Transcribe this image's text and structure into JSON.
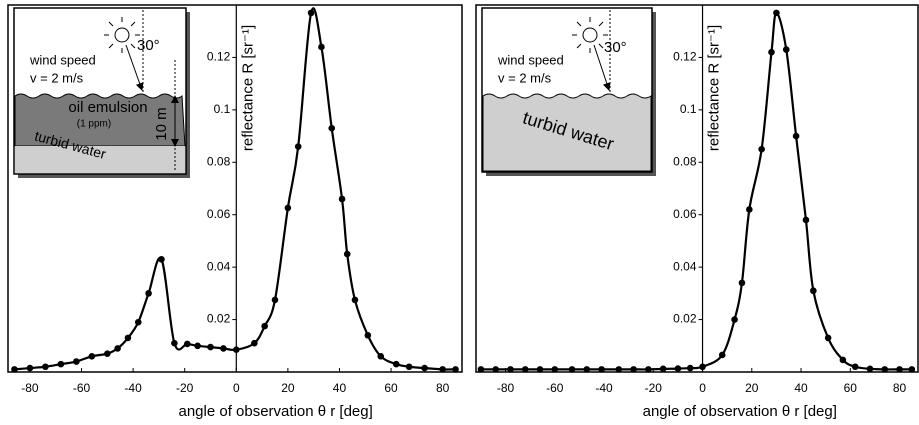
{
  "chart_data": [
    {
      "type": "line",
      "xlim": [
        -88.5,
        87.5
      ],
      "ylim": [
        0,
        0.14
      ],
      "xticks": [
        -80,
        -60,
        -40,
        -20,
        0,
        20,
        40,
        60,
        80
      ],
      "yticks": [
        0.02,
        0.04,
        0.06,
        0.08,
        0.1,
        0.12
      ],
      "xlabel": "angle of observation θ r  [deg]",
      "ylabel": "reflectance R  [sr⁻¹]",
      "annotations": [
        "wind speed",
        "v = 2 m/s",
        "30°",
        "oil  emulsion",
        "(1 ppm)",
        "turbid  water",
        "10 m"
      ],
      "series": [
        {
          "color": "#000000",
          "x": [
            -86,
            -80,
            -74,
            -68,
            -62,
            -56,
            -50,
            -46,
            -42,
            -38,
            -34,
            -29,
            -24,
            -19,
            -15,
            -10,
            -5,
            0,
            7,
            11,
            15,
            20,
            24,
            29,
            33,
            37,
            41,
            43,
            46,
            51,
            56,
            62,
            67,
            73,
            80,
            85
          ],
          "values": [
            0.001,
            0.0015,
            0.002,
            0.003,
            0.004,
            0.006,
            0.007,
            0.009,
            0.013,
            0.019,
            0.03,
            0.043,
            0.011,
            0.0107,
            0.01,
            0.0095,
            0.009,
            0.0085,
            0.011,
            0.0175,
            0.0275,
            0.0626,
            0.086,
            0.137,
            0.124,
            0.093,
            0.066,
            0.045,
            0.0275,
            0.014,
            0.006,
            0.003,
            0.002,
            0.0015,
            0.001,
            0.001
          ]
        }
      ]
    },
    {
      "type": "line",
      "xlim": [
        -92,
        87.5
      ],
      "ylim": [
        0,
        0.14
      ],
      "xticks": [
        -80,
        -60,
        -40,
        -20,
        0,
        20,
        40,
        60,
        80
      ],
      "yticks": [
        0.02,
        0.04,
        0.06,
        0.08,
        0.1,
        0.12
      ],
      "xlabel": "angle of observation θ r  [deg]",
      "ylabel": "reflectance R  [sr⁻¹]",
      "annotations": [
        "wind speed",
        "v = 2 m/s",
        "30°",
        "turbid  water"
      ],
      "series": [
        {
          "color": "#000000",
          "x": [
            -90,
            -84,
            -78,
            -72,
            -66,
            -60,
            -53,
            -47,
            -41,
            -34,
            -28,
            -22,
            -16,
            -10,
            -5,
            0,
            8,
            13,
            16,
            19,
            24,
            28,
            30,
            34,
            38,
            42,
            45,
            51,
            57,
            62,
            68,
            74,
            80,
            85
          ],
          "values": [
            0.001,
            0.001,
            0.001,
            0.001,
            0.001,
            0.001,
            0.001,
            0.001,
            0.001,
            0.001,
            0.001,
            0.001,
            0.0012,
            0.0013,
            0.0015,
            0.002,
            0.0065,
            0.02,
            0.034,
            0.062,
            0.085,
            0.122,
            0.137,
            0.123,
            0.09,
            0.058,
            0.031,
            0.013,
            0.0046,
            0.002,
            0.0012,
            0.001,
            0.001,
            0.001
          ]
        }
      ]
    }
  ]
}
